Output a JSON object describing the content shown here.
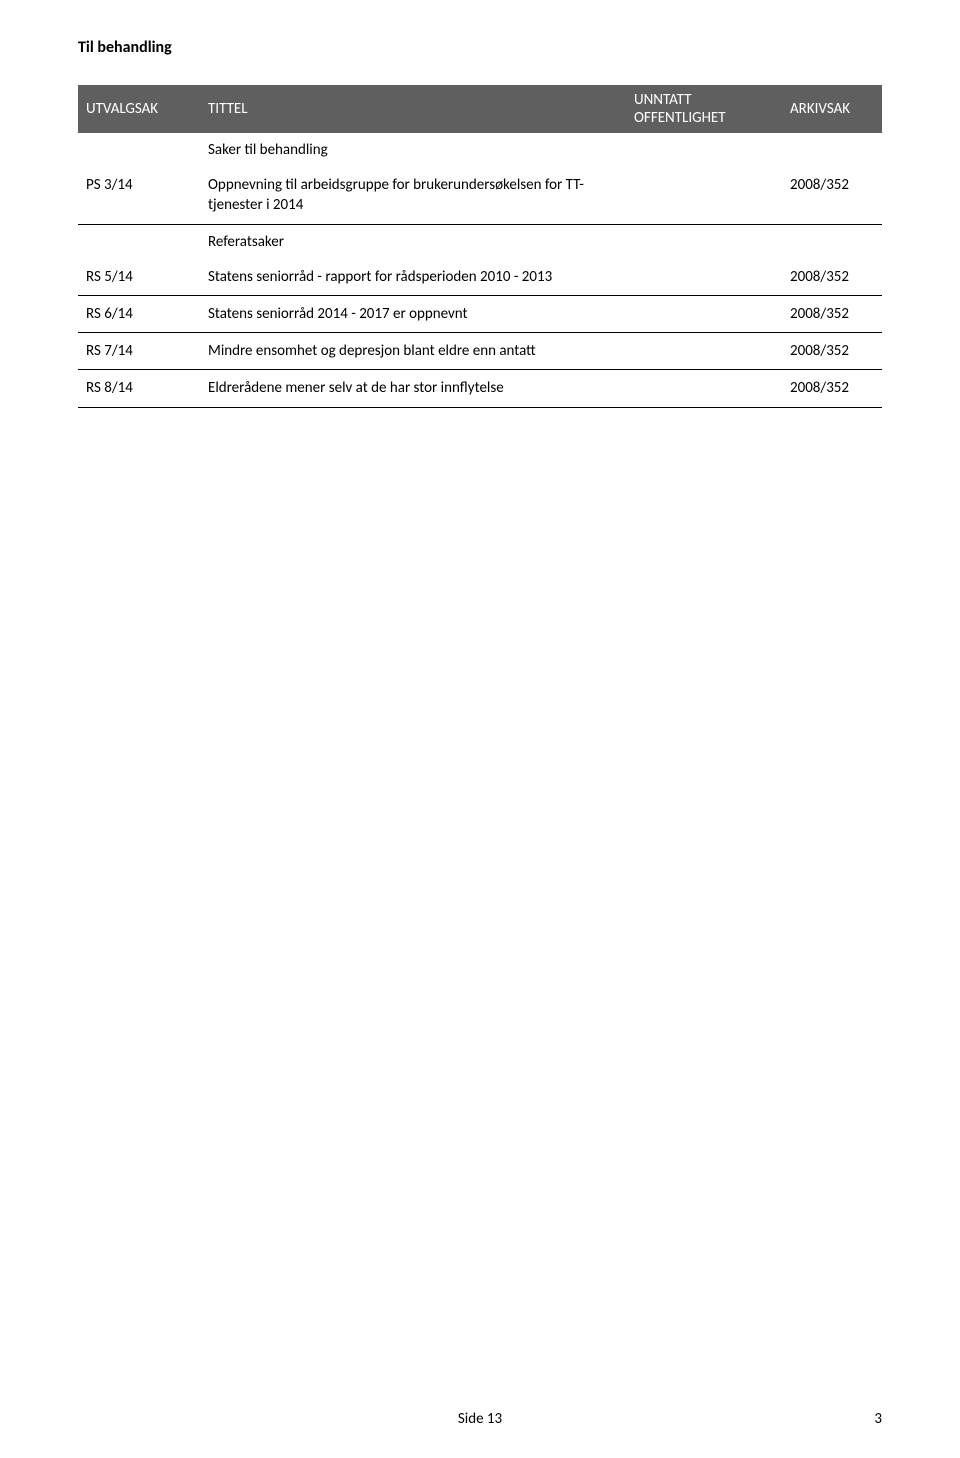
{
  "page_title": "Til behandling",
  "headers": {
    "col1": "UTVALGSAK",
    "col2": "TITTEL",
    "col3_line1": "UNNTATT",
    "col3_line2": "OFFENTLIGHET",
    "col4": "ARKIVSAK"
  },
  "section_saker": "Saker til behandling",
  "section_referat": "Referatsaker",
  "rows": [
    {
      "id": "PS 3/14",
      "title": "Oppnevning til arbeidsgruppe for brukerundersøkelsen for TT-tjenester i 2014",
      "arkivsak": "2008/352"
    },
    {
      "id": "RS 5/14",
      "title": "Statens seniorråd - rapport for rådsperioden 2010 - 2013",
      "arkivsak": "2008/352"
    },
    {
      "id": "RS 6/14",
      "title": "Statens seniorråd 2014 - 2017 er oppnevnt",
      "arkivsak": "2008/352"
    },
    {
      "id": "RS 7/14",
      "title": "Mindre ensomhet og depresjon blant eldre enn antatt",
      "arkivsak": "2008/352"
    },
    {
      "id": "RS 8/14",
      "title": "Eldrerådene mener selv at de har stor innflytelse",
      "arkivsak": "2008/352"
    }
  ],
  "footer_side": "Side 13",
  "footer_pagenum": "3"
}
